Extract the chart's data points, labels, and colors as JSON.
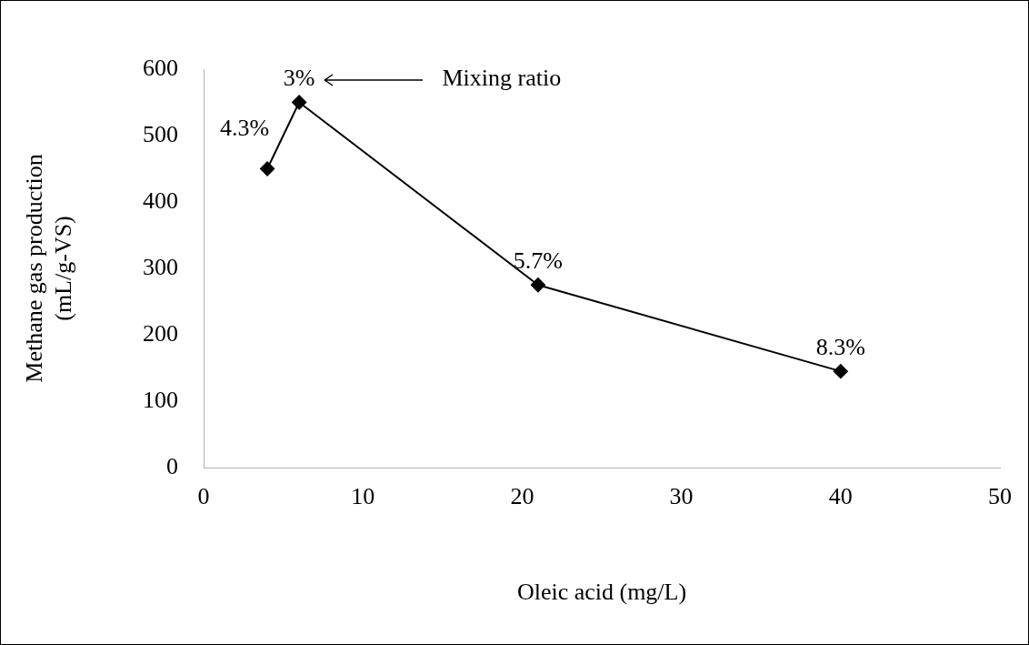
{
  "chart_data": {
    "type": "line",
    "xlabel": "Oleic acid (mg/L)",
    "ylabel": "Methane gas production\n(mL/g-VS)",
    "x": [
      4,
      6,
      21,
      40
    ],
    "values": [
      450,
      550,
      275,
      145
    ],
    "color": "#000000",
    "marker": "diamond",
    "line_style": "solid",
    "xlim": [
      0,
      50
    ],
    "xticks": [
      0,
      10,
      20,
      30,
      40,
      50
    ],
    "ylim": [
      0,
      600
    ],
    "yticks": [
      0,
      100,
      200,
      300,
      400,
      500,
      600
    ],
    "grid": false,
    "legend": false,
    "annotations": [
      {
        "text": "4.3%",
        "x": 4,
        "y": 450
      },
      {
        "text": "3%",
        "x": 6,
        "y": 550
      },
      {
        "text": "5.7%",
        "x": 21,
        "y": 275
      },
      {
        "text": "8.3%",
        "x": 40,
        "y": 145
      },
      "Mixing ratio"
    ]
  }
}
